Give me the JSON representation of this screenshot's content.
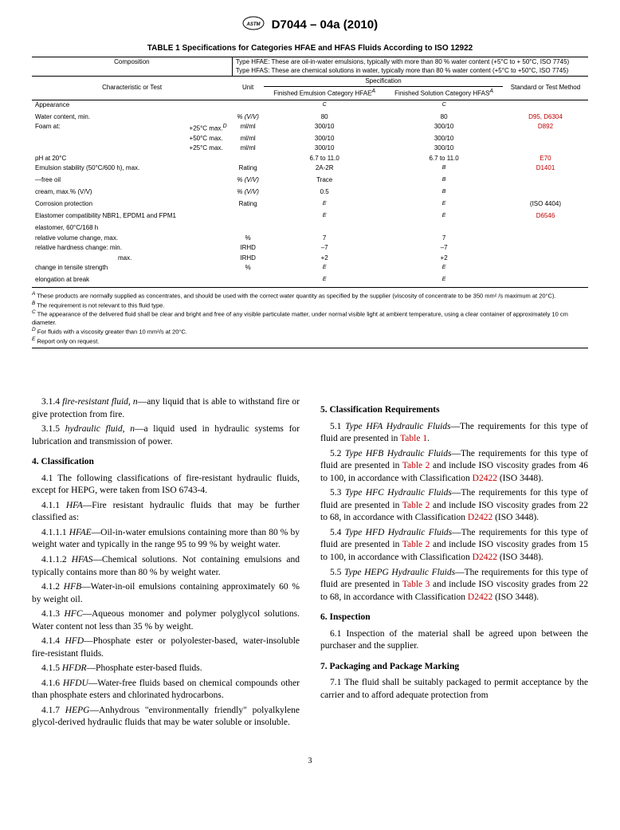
{
  "header": {
    "std": "D7044 – 04a (2010)"
  },
  "table": {
    "caption": "TABLE 1 Specifications for Categories HFAE and HFAS Fluids According to ISO 12922",
    "composition_label": "Composition",
    "composition_hfae": "Type HFAE: These are oil-in-water emulsions, typically with more than 80 % water content (+5°C to + 50°C, ISO 7745)",
    "composition_hfas": "Type HFAS: These are chemical solutions in water, typically more than 80 % water content (+5°C to +50°C, ISO 7745)",
    "char_label": "Characteristic or Test",
    "unit_label": "Unit",
    "spec_label": "Specification",
    "hfae_label": "Finished Emulsion Category HFAE",
    "hfas_label": "Finished Solution Category HFAS",
    "std_label": "Standard or Test Method",
    "rows": [
      {
        "c": "Appearance",
        "u": "",
        "e": "C",
        "s": "C",
        "m": ""
      },
      {
        "c": "Water content, min.",
        "u": "% (V/V)",
        "e": "80",
        "s": "80",
        "m": "D95, D6304",
        "red": true,
        "uit": true
      },
      {
        "c": "Foam at:",
        "c2": "+25°C max.D",
        "u": "ml/ml",
        "e": "300/10",
        "s": "300/10",
        "m": "D892",
        "red": true
      },
      {
        "c": "",
        "c2": "+50°C max.",
        "u": "ml/ml",
        "e": "300/10",
        "s": "300/10",
        "m": ""
      },
      {
        "c": "",
        "c2": "+25°C max.",
        "u": "ml/ml",
        "e": "300/10",
        "s": "300/10",
        "m": ""
      },
      {
        "c": "pH at 20°C",
        "u": "",
        "e": "6.7 to 11.0",
        "s": "6.7 to 11.0",
        "m": "E70",
        "red": true
      },
      {
        "c": "Emulsion stability (50°C/600 h), max.",
        "u": "Rating",
        "e": "2A-2R",
        "s": "B",
        "m": "D1401",
        "red": true,
        "sit": true
      },
      {
        "c": "—free oil",
        "u": "% (V/V)",
        "e": "Trace",
        "s": "B",
        "m": "",
        "uit": true,
        "sit": true
      },
      {
        "c": "cream, max.% (V/V)",
        "u": "% (V/V)",
        "e": "0.5",
        "s": "B",
        "m": "",
        "uit": true,
        "sit": true
      },
      {
        "c": "Corrosion protection",
        "u": "Rating",
        "e": "E",
        "s": "E",
        "m": "(ISO 4404)",
        "eit": true,
        "sit": true
      },
      {
        "c": "Elastomer compatibility NBR1, EPDM1 and FPM1",
        "u": "",
        "e": "E",
        "s": "E",
        "m": "D6546",
        "red": true,
        "eit": true,
        "sit": true
      },
      {
        "c": "elastomer, 60°C/168 h",
        "u": "",
        "e": "",
        "s": "",
        "m": ""
      },
      {
        "c": "relative volume change, max.",
        "u": "%",
        "e": "7",
        "s": "7",
        "m": "",
        "ind": 1
      },
      {
        "c": "relative hardness change: min.",
        "u": "IRHD",
        "e": "–7",
        "s": "–7",
        "m": "",
        "ind": 1
      },
      {
        "c": "max.",
        "u": "IRHD",
        "e": "+2",
        "s": "+2",
        "m": "",
        "ind": 3
      },
      {
        "c": "change in tensile strength",
        "u": "%",
        "e": "E",
        "s": "E",
        "m": "",
        "ind": 1,
        "eit": true,
        "sit": true
      },
      {
        "c": "elongation at break",
        "u": "",
        "e": "E",
        "s": "E",
        "m": "",
        "ind": 1,
        "eit": true,
        "sit": true
      }
    ],
    "footnotes": {
      "A": "These products are normally supplied as concentrates, and should be used with the correct water quantity as specified by the supplier (viscosity of concentrate to be 350 mm² /s maximum at 20°C).",
      "B": "The requirement is not relevant to this fluid type.",
      "C": "The appearance of the delivered fluid shall be clear and bright and free of any visible particulate matter, under normal visible light at ambient temperature, using a clear container of approximately 10 cm diameter.",
      "D": "For fluids with a viscosity greater than 10 mm²/s at 20°C.",
      "E": "Report only on request."
    }
  },
  "body": {
    "p314": "3.1.4 fire-resistant fluid, n—any liquid that is able to withstand fire or give protection from fire.",
    "p315": "3.1.5 hydraulic fluid, n—a liquid used in hydraulic systems for lubrication and transmission of power.",
    "h4": "4. Classification",
    "p41": "4.1 The following classifications of fire-resistant hydraulic fluids, except for HEPG, were taken from ISO 6743-4.",
    "p411": "4.1.1 HFA—Fire resistant hydraulic fluids that may be further classified as:",
    "p4111": "4.1.1.1 HFAE—Oil-in-water emulsions containing more than 80 % by weight water and typically in the range 95 to 99 % by weight water.",
    "p4112": "4.1.1.2 HFAS—Chemical solutions. Not containing emulsions and typically contains more than 80 % by weight water.",
    "p412": "4.1.2 HFB—Water-in-oil emulsions containing approximately 60 % by weight oil.",
    "p413": "4.1.3 HFC—Aqueous monomer and polymer polyglycol solutions. Water content not less than 35 % by weight.",
    "p414": "4.1.4 HFD—Phosphate ester or polyolester-based, water-insoluble fire-resistant fluids.",
    "p415": "4.1.5 HFDR—Phosphate ester-based fluids.",
    "p416": "4.1.6 HFDU—Water-free fluids based on chemical compounds other than phosphate esters and chlorinated hydrocarbons.",
    "p417": "4.1.7 HEPG—Anhydrous \"environmentally friendly\" polyalkylene glycol-derived hydraulic fluids that may be water soluble or insoluble.",
    "h5": "5. Classification Requirements",
    "p51a": "5.1 Type HFA Hydraulic Fluids—The requirements for this type of fluid are presented in ",
    "p51b": "Table 1",
    "p51c": ".",
    "p52a": "5.2 Type HFB Hydraulic Fluids—The requirements for this type of fluid are presented in ",
    "p52b": "Table 2",
    "p52c": " and include ISO viscosity grades from 46 to 100, in accordance with Classification ",
    "p52d": "D2422",
    "p52e": " (ISO 3448).",
    "p53a": "5.3 Type HFC Hydraulic Fluids—The requirements for this type of fluid are presented in ",
    "p53b": "Table 2",
    "p53c": " and include ISO viscosity grades from 22 to 68, in accordance with Classification ",
    "p53d": "D2422",
    "p53e": " (ISO 3448).",
    "p54a": "5.4 Type HFD Hydraulic Fluids—The requirements for this type of fluid are presented in ",
    "p54b": "Table 2",
    "p54c": " and include ISO viscosity grades from 15 to 100, in accordance with Classification ",
    "p54d": "D2422",
    "p54e": " (ISO 3448).",
    "p55a": "5.5 Type HEPG Hydraulic Fluids—The requirements for this type of fluid are presented in ",
    "p55b": "Table 3",
    "p55c": " and include ISO viscosity grades from 22 to 68, in accordance with Classification ",
    "p55d": "D2422",
    "p55e": " (ISO 3448).",
    "h6": "6. Inspection",
    "p61": "6.1 Inspection of the material shall be agreed upon between the purchaser and the supplier.",
    "h7": "7. Packaging and Package Marking",
    "p71": "7.1 The fluid shall be suitably packaged to permit acceptance by the carrier and to afford adequate protection from"
  },
  "page": "3"
}
